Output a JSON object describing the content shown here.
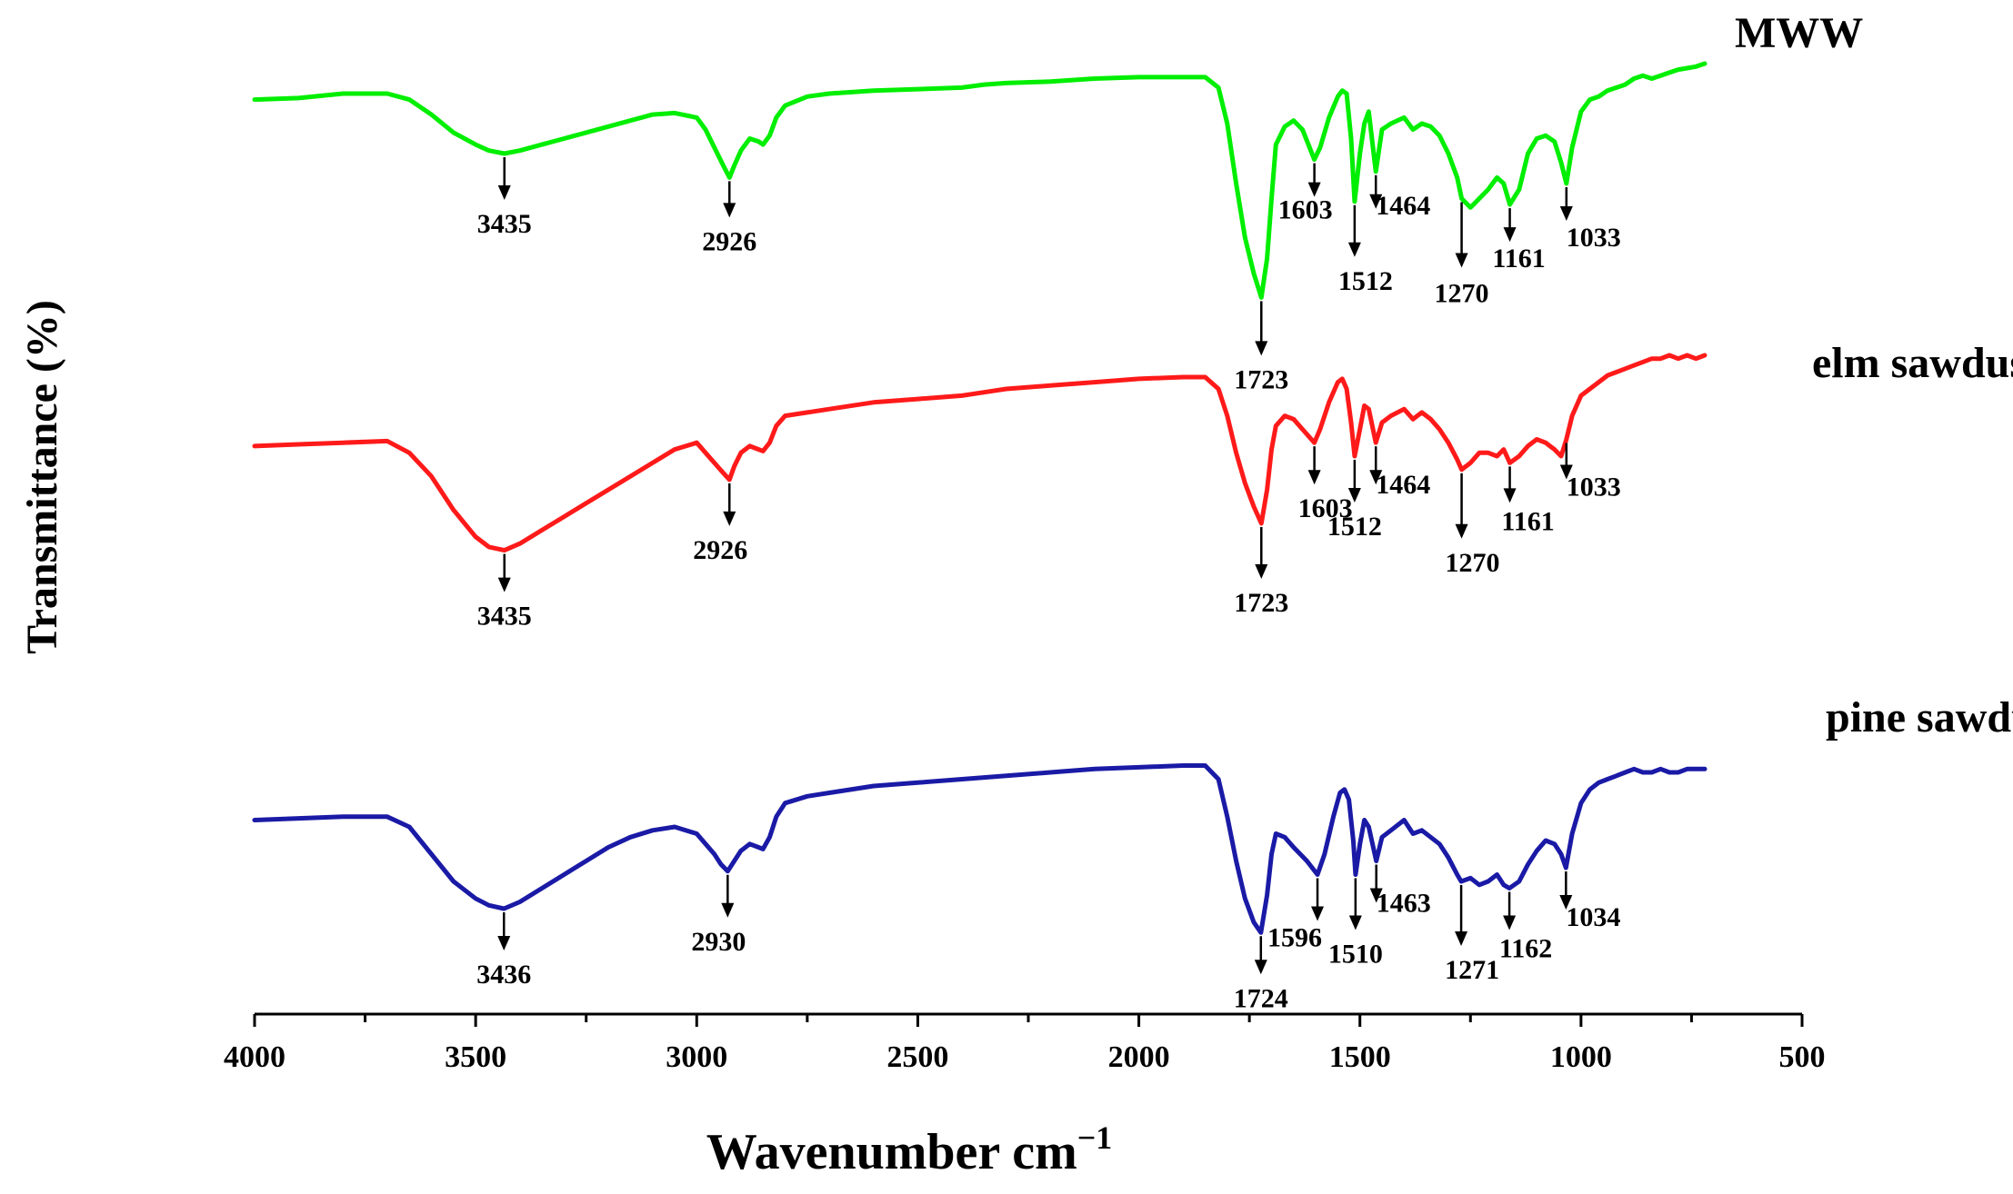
{
  "chart_data": {
    "type": "line",
    "title": "",
    "xlabel": "Wavenumber cm",
    "xlabel_superscript": "−1",
    "ylabel": "Transmittance (%)",
    "xlim": [
      4000,
      500
    ],
    "x_reversed": true,
    "xticks": [
      4000,
      3500,
      3000,
      2500,
      2000,
      1500,
      1000,
      500
    ],
    "xtick_labels": [
      "4000",
      "3500",
      "3000",
      "2500",
      "2000",
      "1500",
      "1000",
      "500"
    ],
    "y_offset_stacked": true,
    "y_units": "arbitrary (offset)",
    "series": [
      {
        "name": "MWW",
        "color": "#00ee00",
        "x": [
          4000,
          3900,
          3800,
          3700,
          3650,
          3600,
          3550,
          3500,
          3470,
          3435,
          3400,
          3350,
          3300,
          3250,
          3200,
          3150,
          3100,
          3050,
          3000,
          2980,
          2960,
          2940,
          2926,
          2915,
          2900,
          2880,
          2860,
          2850,
          2835,
          2820,
          2800,
          2750,
          2700,
          2600,
          2500,
          2400,
          2350,
          2300,
          2200,
          2100,
          2000,
          1900,
          1850,
          1820,
          1800,
          1780,
          1760,
          1740,
          1723,
          1710,
          1700,
          1690,
          1670,
          1650,
          1630,
          1603,
          1590,
          1570,
          1550,
          1540,
          1530,
          1520,
          1512,
          1500,
          1490,
          1480,
          1464,
          1450,
          1430,
          1400,
          1380,
          1360,
          1340,
          1320,
          1300,
          1280,
          1270,
          1250,
          1230,
          1210,
          1190,
          1175,
          1161,
          1140,
          1120,
          1100,
          1080,
          1060,
          1045,
          1033,
          1020,
          1000,
          980,
          960,
          940,
          920,
          900,
          880,
          860,
          840,
          820,
          800,
          780,
          760,
          740,
          720
        ],
        "y": [
          88,
          88.5,
          90,
          90,
          88,
          83,
          77,
          73,
          71,
          70,
          71,
          73,
          75,
          77,
          79,
          81,
          83,
          83.5,
          82,
          78,
          72,
          66,
          62,
          66,
          71,
          75,
          74,
          73,
          76,
          82,
          86,
          89,
          90,
          91,
          91.5,
          92,
          93,
          93.5,
          94,
          95,
          95.5,
          95.5,
          95.5,
          92,
          80,
          60,
          42,
          30,
          22,
          35,
          55,
          73,
          79,
          81,
          78,
          68,
          72,
          82,
          89,
          91,
          90,
          75,
          54,
          70,
          80,
          84,
          64,
          78,
          80,
          82,
          78,
          80,
          79,
          76,
          70,
          62,
          55,
          52,
          55,
          58,
          62,
          60,
          53,
          58,
          70,
          75,
          76,
          74,
          67,
          60,
          72,
          84,
          88,
          89,
          91,
          92,
          93,
          95,
          96,
          95,
          96,
          97,
          98,
          98.5,
          99,
          100
        ]
      },
      {
        "name": "elm sawdust",
        "color": "#ff1a1a",
        "x": [
          4000,
          3900,
          3800,
          3700,
          3650,
          3600,
          3550,
          3500,
          3470,
          3435,
          3400,
          3350,
          3300,
          3250,
          3200,
          3150,
          3100,
          3050,
          3000,
          2980,
          2960,
          2940,
          2926,
          2915,
          2900,
          2880,
          2860,
          2850,
          2835,
          2820,
          2800,
          2750,
          2700,
          2600,
          2500,
          2400,
          2350,
          2300,
          2200,
          2100,
          2000,
          1900,
          1850,
          1820,
          1800,
          1780,
          1760,
          1740,
          1723,
          1710,
          1700,
          1690,
          1670,
          1650,
          1630,
          1603,
          1590,
          1570,
          1550,
          1540,
          1530,
          1520,
          1512,
          1500,
          1490,
          1480,
          1464,
          1450,
          1430,
          1400,
          1380,
          1360,
          1340,
          1320,
          1300,
          1280,
          1270,
          1250,
          1230,
          1210,
          1190,
          1175,
          1161,
          1140,
          1120,
          1100,
          1080,
          1060,
          1045,
          1033,
          1020,
          1000,
          980,
          960,
          940,
          920,
          900,
          880,
          860,
          840,
          820,
          800,
          780,
          760,
          740,
          720
        ],
        "y": [
          43,
          43.5,
          44,
          44.5,
          41,
          34,
          24,
          16,
          13,
          12,
          14,
          18,
          22,
          26,
          30,
          34,
          38,
          42,
          44,
          41,
          38,
          35,
          33,
          37,
          41,
          43,
          42,
          41.5,
          44,
          49,
          52,
          53,
          54,
          56,
          57,
          58,
          59,
          60,
          61,
          62,
          63,
          63.5,
          63.5,
          60,
          52,
          41,
          32,
          25,
          20,
          30,
          42,
          49,
          52,
          51,
          48,
          44,
          48,
          56,
          62,
          63,
          60,
          50,
          40,
          48,
          55,
          54,
          44,
          50,
          52,
          54,
          51,
          53,
          51,
          48,
          44,
          39,
          36,
          38,
          41,
          41,
          40,
          42,
          38,
          40,
          43,
          45,
          44,
          42,
          40,
          45,
          52,
          58,
          60,
          62,
          64,
          65,
          66,
          67,
          68,
          69,
          69,
          70,
          69,
          70,
          69,
          70
        ]
      },
      {
        "name": "pine sawdust",
        "color": "#1a1aa6",
        "x": [
          4000,
          3900,
          3800,
          3700,
          3650,
          3600,
          3550,
          3500,
          3470,
          3436,
          3400,
          3350,
          3300,
          3250,
          3200,
          3150,
          3100,
          3050,
          3000,
          2980,
          2960,
          2945,
          2930,
          2915,
          2900,
          2880,
          2860,
          2850,
          2835,
          2820,
          2800,
          2750,
          2700,
          2600,
          2500,
          2400,
          2350,
          2300,
          2200,
          2100,
          2000,
          1900,
          1850,
          1820,
          1800,
          1780,
          1760,
          1740,
          1724,
          1710,
          1700,
          1690,
          1670,
          1650,
          1620,
          1596,
          1580,
          1560,
          1545,
          1535,
          1525,
          1515,
          1510,
          1500,
          1490,
          1480,
          1463,
          1450,
          1430,
          1400,
          1380,
          1360,
          1340,
          1320,
          1300,
          1280,
          1271,
          1250,
          1230,
          1210,
          1190,
          1175,
          1162,
          1140,
          1120,
          1100,
          1080,
          1060,
          1045,
          1034,
          1020,
          1000,
          980,
          960,
          940,
          920,
          900,
          880,
          860,
          840,
          820,
          800,
          780,
          760,
          740,
          720
        ],
        "y": [
          -6,
          -5.5,
          -5,
          -5,
          -8,
          -16,
          -24,
          -29,
          -31,
          -32,
          -30,
          -26,
          -22,
          -18,
          -14,
          -11,
          -9,
          -8,
          -10,
          -13,
          -16,
          -19,
          -21,
          -18,
          -15,
          -13,
          -14,
          -14.5,
          -11,
          -5,
          -1,
          1,
          2,
          4,
          5,
          6,
          6.5,
          7,
          8,
          9,
          9.5,
          10,
          10,
          6,
          -5,
          -18,
          -29,
          -36,
          -39,
          -28,
          -16,
          -10,
          -11,
          -14,
          -18,
          -22,
          -16,
          -5,
          2,
          3,
          0,
          -12,
          -22,
          -13,
          -6,
          -8,
          -18,
          -11,
          -9,
          -6,
          -10,
          -9,
          -11,
          -13,
          -17,
          -22,
          -24,
          -23,
          -25,
          -24,
          -22,
          -25,
          -26,
          -24,
          -19,
          -15,
          -12,
          -13,
          -16,
          -20,
          -10,
          -1,
          3,
          5,
          6,
          7,
          8,
          9,
          8,
          8,
          9,
          8,
          8,
          9,
          9,
          9
        ]
      }
    ],
    "annotations": [
      {
        "series": "MWW",
        "peaks": [
          "3435",
          "2926",
          "1723",
          "1603",
          "1512",
          "1464",
          "1270",
          "1161",
          "1033"
        ]
      },
      {
        "series": "elm sawdust",
        "peaks": [
          "3435",
          "2926",
          "1723",
          "1603",
          "1512",
          "1464",
          "1270",
          "1161",
          "1033"
        ]
      },
      {
        "series": "pine sawdust",
        "peaks": [
          "3436",
          "2930",
          "1724",
          "1596",
          "1510",
          "1463",
          "1271",
          "1162",
          "1034"
        ]
      }
    ],
    "legend": "inline labels at right of each curve"
  }
}
